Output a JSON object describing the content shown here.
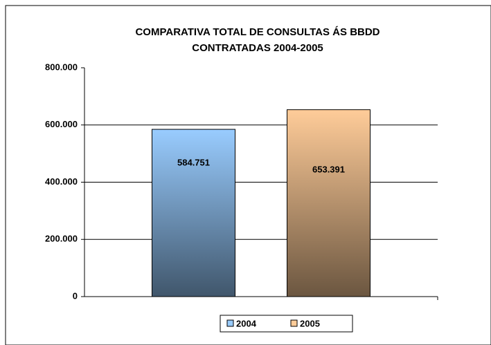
{
  "chart_data": {
    "type": "bar",
    "title": [
      "COMPARATIVA TOTAL DE CONSULTAS ÁS BBDD",
      "CONTRATADAS 2004-2005"
    ],
    "categories": [
      null
    ],
    "series": [
      {
        "name": "2004",
        "color": "#99ccff",
        "values": [
          584751
        ],
        "value_labels": [
          "584.751"
        ]
      },
      {
        "name": "2005",
        "color": "#ffcc99",
        "values": [
          653391
        ],
        "value_labels": [
          "653.391"
        ]
      }
    ],
    "ylim": [
      0,
      800000
    ],
    "yticks": [
      0,
      {
        "value": 200000,
        "label": "200.000"
      },
      {
        "value": 400000,
        "label": "400.000"
      },
      {
        "value": 600000,
        "label": "600.000"
      },
      {
        "value": 800000,
        "label": "800.000"
      }
    ],
    "grid": true,
    "legend": "bottom"
  }
}
